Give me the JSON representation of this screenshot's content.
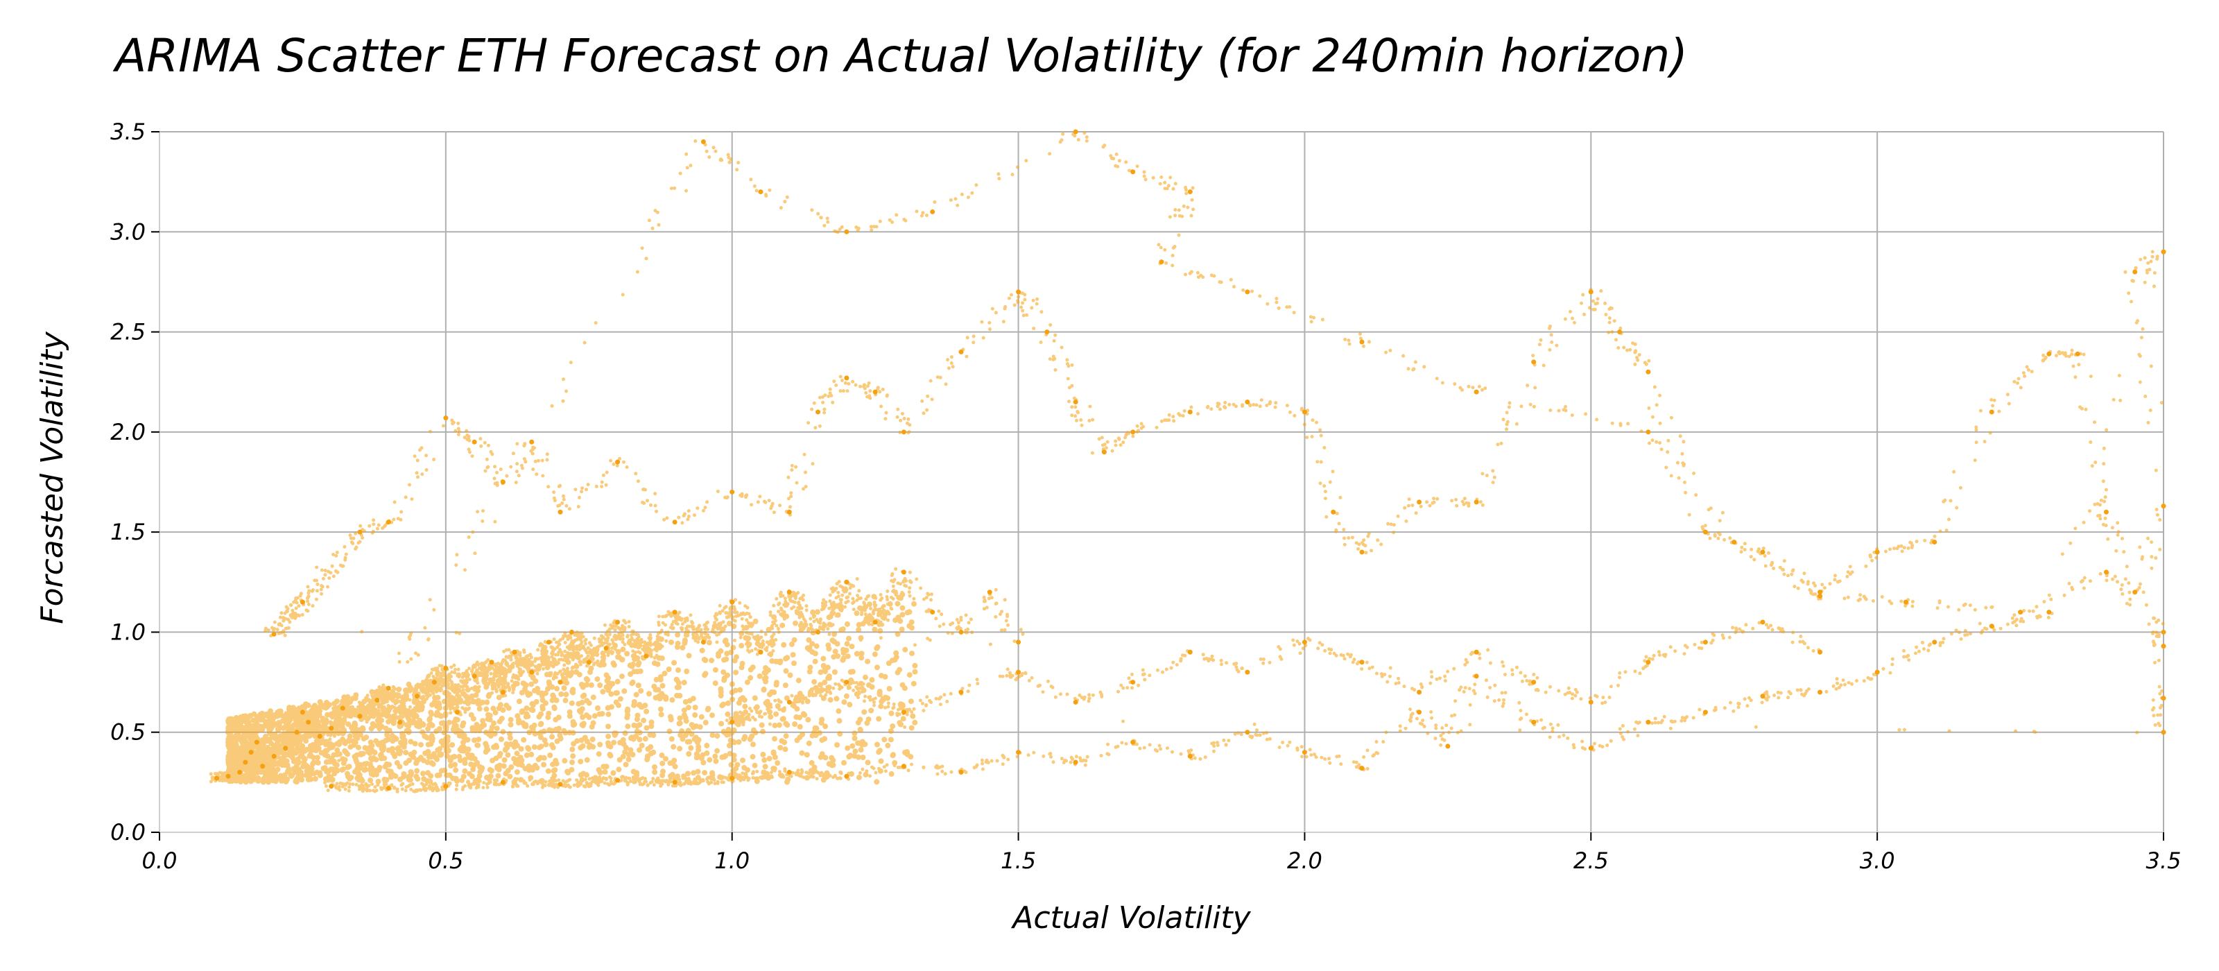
{
  "chart_data": {
    "type": "scatter",
    "title": "ARIMA Scatter ETH Forecast on Actual Volatility (for 240min horizon)",
    "xlabel": "Actual Volatility",
    "ylabel": "Forcasted Volatility",
    "xlim": [
      0.0,
      3.5
    ],
    "ylim": [
      0.0,
      3.5
    ],
    "x_ticks": [
      0.0,
      0.5,
      1.0,
      1.5,
      2.0,
      2.5,
      3.0,
      3.5
    ],
    "x_tick_labels": [
      "0.0",
      "0.5",
      "1.0",
      "1.5",
      "2.0",
      "2.5",
      "3.0",
      "3.5"
    ],
    "y_ticks": [
      0.0,
      0.5,
      1.0,
      1.5,
      2.0,
      2.5,
      3.0,
      3.5
    ],
    "y_tick_labels": [
      "0.0",
      "0.5",
      "1.0",
      "1.5",
      "2.0",
      "2.5",
      "3.0",
      "3.5"
    ],
    "grid": true,
    "point_color": "#f5a00f",
    "series": [
      {
        "points": [
          [
            0.1,
            0.27
          ],
          [
            0.12,
            0.28
          ],
          [
            0.14,
            0.3
          ],
          [
            0.15,
            0.35
          ],
          [
            0.16,
            0.4
          ],
          [
            0.17,
            0.45
          ],
          [
            0.18,
            0.33
          ],
          [
            0.2,
            0.38
          ],
          [
            0.22,
            0.42
          ],
          [
            0.24,
            0.5
          ],
          [
            0.25,
            0.6
          ],
          [
            0.26,
            0.55
          ],
          [
            0.28,
            0.48
          ],
          [
            0.3,
            0.52
          ],
          [
            0.32,
            0.62
          ],
          [
            0.35,
            0.58
          ],
          [
            0.38,
            0.66
          ],
          [
            0.4,
            0.72
          ],
          [
            0.42,
            0.55
          ],
          [
            0.45,
            0.68
          ],
          [
            0.48,
            0.75
          ],
          [
            0.5,
            0.82
          ],
          [
            0.52,
            0.6
          ],
          [
            0.55,
            0.78
          ],
          [
            0.58,
            0.85
          ],
          [
            0.6,
            0.7
          ],
          [
            0.62,
            0.9
          ],
          [
            0.65,
            0.8
          ],
          [
            0.68,
            0.95
          ],
          [
            0.7,
            0.75
          ],
          [
            0.72,
            1.0
          ],
          [
            0.75,
            0.85
          ],
          [
            0.78,
            0.92
          ],
          [
            0.8,
            1.05
          ],
          [
            0.85,
            0.88
          ],
          [
            0.9,
            1.1
          ],
          [
            0.95,
            0.95
          ],
          [
            1.0,
            1.15
          ],
          [
            1.05,
            0.9
          ],
          [
            1.1,
            1.2
          ],
          [
            1.15,
            1.0
          ],
          [
            1.2,
            1.25
          ],
          [
            1.25,
            1.05
          ],
          [
            1.3,
            1.3
          ],
          [
            1.35,
            1.1
          ],
          [
            1.4,
            1.0
          ],
          [
            1.45,
            1.2
          ],
          [
            1.5,
            0.95
          ],
          [
            0.2,
            0.99
          ],
          [
            0.25,
            1.15
          ],
          [
            0.35,
            1.5
          ],
          [
            0.4,
            1.55
          ],
          [
            0.5,
            2.07
          ],
          [
            0.55,
            1.95
          ],
          [
            0.6,
            1.75
          ],
          [
            0.65,
            1.95
          ],
          [
            0.7,
            1.6
          ],
          [
            0.8,
            1.85
          ],
          [
            0.9,
            1.55
          ],
          [
            1.0,
            1.7
          ],
          [
            1.1,
            1.6
          ],
          [
            1.15,
            2.1
          ],
          [
            1.2,
            2.27
          ],
          [
            1.25,
            2.2
          ],
          [
            1.3,
            2.0
          ],
          [
            1.4,
            2.4
          ],
          [
            1.5,
            2.7
          ],
          [
            1.55,
            2.5
          ],
          [
            1.6,
            2.15
          ],
          [
            1.65,
            1.9
          ],
          [
            1.7,
            2.0
          ],
          [
            1.8,
            2.1
          ],
          [
            1.9,
            2.15
          ],
          [
            2.0,
            2.1
          ],
          [
            2.05,
            1.6
          ],
          [
            2.1,
            1.4
          ],
          [
            2.2,
            1.65
          ],
          [
            2.3,
            1.65
          ],
          [
            2.4,
            2.35
          ],
          [
            2.5,
            2.7
          ],
          [
            2.55,
            2.5
          ],
          [
            2.6,
            2.3
          ],
          [
            2.7,
            1.5
          ],
          [
            2.8,
            1.4
          ],
          [
            2.9,
            1.2
          ],
          [
            3.0,
            1.4
          ],
          [
            3.1,
            1.45
          ],
          [
            3.2,
            2.1
          ],
          [
            3.3,
            2.39
          ],
          [
            3.35,
            2.39
          ],
          [
            3.4,
            1.6
          ],
          [
            3.45,
            1.2
          ],
          [
            3.5,
            1.63
          ],
          [
            3.45,
            2.8
          ],
          [
            3.5,
            2.9
          ],
          [
            3.3,
            1.1
          ],
          [
            3.2,
            1.03
          ],
          [
            3.1,
            0.95
          ],
          [
            3.0,
            0.8
          ],
          [
            2.9,
            0.7
          ],
          [
            2.8,
            0.68
          ],
          [
            2.7,
            0.6
          ],
          [
            2.6,
            0.55
          ],
          [
            2.5,
            0.42
          ],
          [
            2.4,
            0.55
          ],
          [
            2.3,
            0.78
          ],
          [
            2.25,
            0.43
          ],
          [
            2.2,
            0.6
          ],
          [
            2.1,
            0.32
          ],
          [
            2.0,
            0.4
          ],
          [
            1.9,
            0.5
          ],
          [
            1.8,
            0.38
          ],
          [
            1.7,
            0.45
          ],
          [
            1.6,
            0.35
          ],
          [
            1.5,
            0.4
          ],
          [
            1.4,
            0.3
          ],
          [
            1.3,
            0.33
          ],
          [
            1.2,
            0.28
          ],
          [
            1.1,
            0.3
          ],
          [
            1.0,
            0.27
          ],
          [
            0.9,
            0.25
          ],
          [
            0.8,
            0.26
          ],
          [
            0.7,
            0.24
          ],
          [
            0.6,
            0.25
          ],
          [
            0.5,
            0.23
          ],
          [
            0.4,
            0.22
          ],
          [
            0.3,
            0.23
          ],
          [
            0.95,
            3.45
          ],
          [
            1.05,
            3.2
          ],
          [
            1.2,
            3.0
          ],
          [
            1.35,
            3.1
          ],
          [
            1.6,
            3.5
          ],
          [
            1.7,
            3.3
          ],
          [
            1.8,
            3.2
          ],
          [
            1.75,
            2.85
          ],
          [
            1.9,
            2.7
          ],
          [
            2.1,
            2.45
          ],
          [
            2.3,
            2.2
          ],
          [
            2.6,
            2.0
          ],
          [
            2.75,
            1.45
          ],
          [
            2.9,
            1.18
          ],
          [
            3.05,
            1.15
          ],
          [
            3.25,
            1.1
          ],
          [
            3.4,
            1.3
          ],
          [
            3.5,
            1.0
          ],
          [
            3.5,
            0.93
          ],
          [
            3.5,
            0.67
          ],
          [
            3.5,
            0.5
          ],
          [
            1.0,
            0.55
          ],
          [
            1.1,
            0.65
          ],
          [
            1.2,
            0.75
          ],
          [
            1.3,
            0.6
          ],
          [
            1.4,
            0.7
          ],
          [
            1.5,
            0.8
          ],
          [
            1.6,
            0.65
          ],
          [
            1.7,
            0.75
          ],
          [
            1.8,
            0.9
          ],
          [
            1.9,
            0.8
          ],
          [
            2.0,
            0.95
          ],
          [
            2.1,
            0.85
          ],
          [
            2.2,
            0.7
          ],
          [
            2.3,
            0.9
          ],
          [
            2.4,
            0.75
          ],
          [
            2.5,
            0.65
          ],
          [
            2.6,
            0.85
          ],
          [
            2.7,
            0.95
          ],
          [
            2.8,
            1.05
          ],
          [
            2.9,
            0.9
          ]
        ]
      }
    ]
  }
}
